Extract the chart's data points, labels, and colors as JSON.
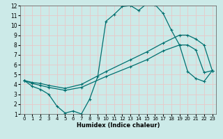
{
  "xlabel": "Humidex (Indice chaleur)",
  "bg_color": "#cceae8",
  "grid_color": "#e8c8c8",
  "line_color": "#007070",
  "xlim": [
    -0.5,
    23.5
  ],
  "ylim": [
    1,
    12
  ],
  "xticks": [
    0,
    1,
    2,
    3,
    4,
    5,
    6,
    7,
    8,
    9,
    10,
    11,
    12,
    13,
    14,
    15,
    16,
    17,
    18,
    19,
    20,
    21,
    22,
    23
  ],
  "yticks": [
    1,
    2,
    3,
    4,
    5,
    6,
    7,
    8,
    9,
    10,
    11,
    12
  ],
  "line1_x": [
    0,
    1,
    2,
    3,
    4,
    5,
    6,
    7,
    8,
    9,
    10,
    11,
    12,
    13,
    14,
    15,
    16,
    17,
    18,
    19,
    20,
    21,
    22,
    23
  ],
  "line1_y": [
    4.4,
    3.8,
    3.5,
    3.0,
    1.8,
    1.1,
    1.3,
    1.0,
    2.5,
    4.8,
    10.4,
    11.1,
    11.9,
    12.0,
    11.5,
    12.2,
    12.1,
    11.2,
    9.5,
    8.0,
    5.3,
    4.6,
    4.3,
    5.4
  ],
  "line2_x": [
    0,
    1,
    2,
    3,
    5,
    7,
    10,
    13,
    15,
    17,
    19,
    20,
    21,
    22,
    23
  ],
  "line2_y": [
    4.4,
    4.2,
    4.1,
    3.9,
    3.6,
    4.0,
    5.3,
    6.5,
    7.3,
    8.2,
    9.0,
    9.0,
    8.6,
    8.0,
    5.4
  ],
  "line3_x": [
    0,
    1,
    2,
    3,
    5,
    7,
    10,
    13,
    15,
    17,
    19,
    20,
    21,
    22,
    23
  ],
  "line3_y": [
    4.4,
    4.1,
    3.9,
    3.7,
    3.4,
    3.7,
    4.8,
    5.8,
    6.5,
    7.4,
    8.0,
    8.0,
    7.5,
    5.2,
    5.4
  ]
}
